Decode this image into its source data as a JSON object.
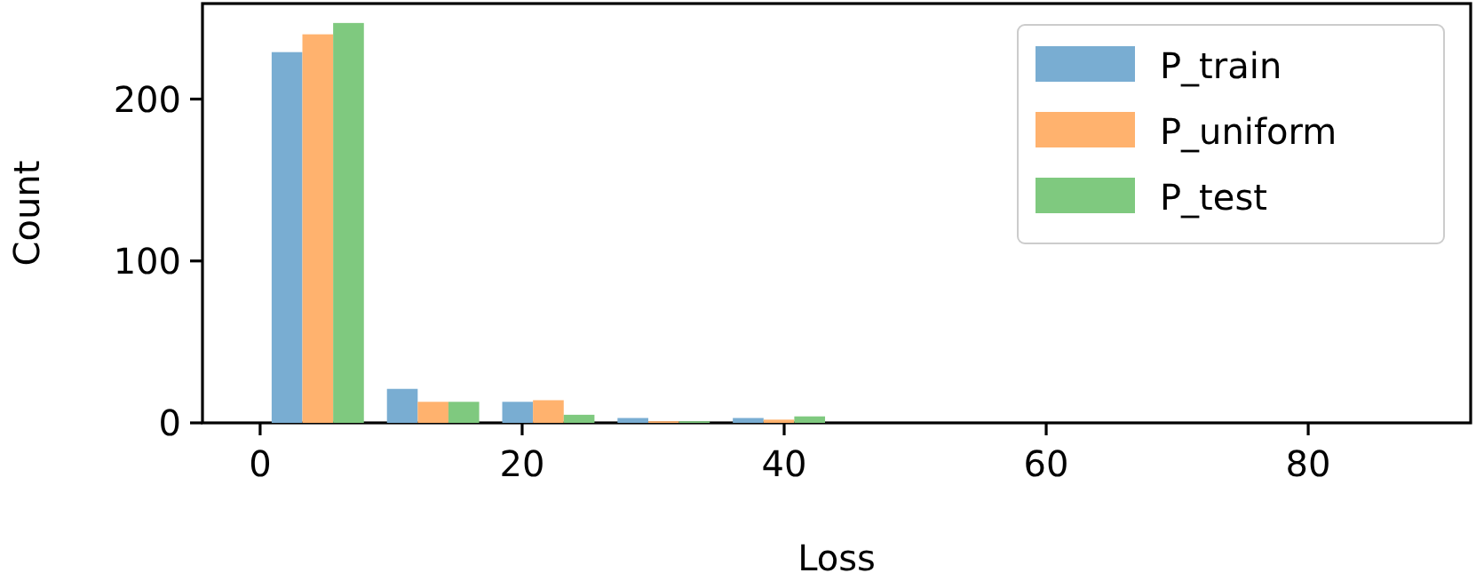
{
  "chart_data": {
    "type": "histogram",
    "xlabel": "Loss",
    "ylabel": "Count",
    "bins": [
      0,
      8.8,
      17.6,
      26.4,
      35.2,
      44,
      52.8,
      61.6,
      70.4,
      79.2,
      88
    ],
    "series": [
      {
        "name": "P_train",
        "color": "#79add2",
        "values": [
          229,
          21,
          13,
          3,
          3,
          0,
          0,
          0,
          0,
          0
        ]
      },
      {
        "name": "P_uniform",
        "color": "#ffb26e",
        "values": [
          240,
          13,
          14,
          1,
          2,
          0,
          0,
          0,
          0,
          0
        ]
      },
      {
        "name": "P_test",
        "color": "#7fc97f",
        "values": [
          247,
          13,
          5,
          1,
          4,
          0,
          0,
          0,
          0,
          0
        ]
      }
    ],
    "xlim": [
      -4.4,
      92.4
    ],
    "ylim": [
      0,
      259
    ],
    "xticks": [
      0,
      20,
      40,
      60,
      80
    ],
    "yticks": [
      0,
      100,
      200
    ],
    "grid": false,
    "legend": "top right"
  }
}
